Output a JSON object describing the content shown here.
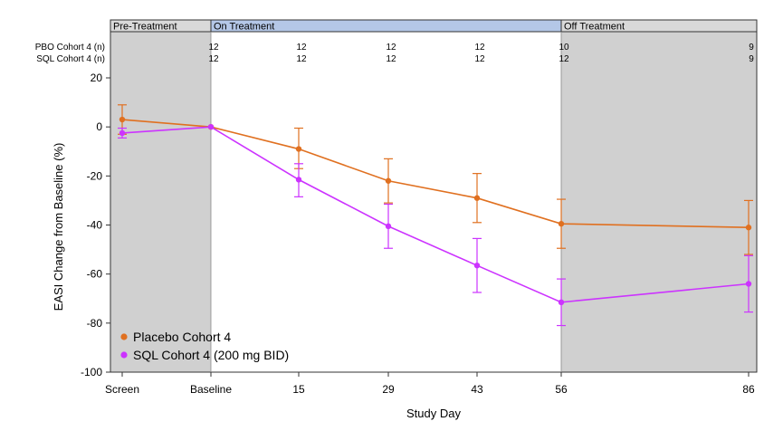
{
  "chart_data": {
    "type": "line",
    "xlabel": "Study Day",
    "ylabel": "EASI Change from Baseline (%)",
    "ylim": [
      -100,
      20
    ],
    "yticks": [
      20,
      0,
      -20,
      -40,
      -60,
      -80,
      -100
    ],
    "categories": [
      "Screen",
      "Baseline",
      "15",
      "29",
      "43",
      "56",
      "86"
    ],
    "phases": [
      {
        "label": "Pre-Treatment",
        "from": "Screen",
        "to": "Baseline",
        "shaded": true,
        "header_color": "#d9d9d9"
      },
      {
        "label": "On Treatment",
        "from": "Baseline",
        "to": "56",
        "shaded": false,
        "header_color": "#b4c7e7"
      },
      {
        "label": "Off Treatment",
        "from": "56",
        "to": "86",
        "shaded": true,
        "header_color": "#d9d9d9"
      }
    ],
    "n_table": [
      {
        "label": "PBO Cohort 4 (n)",
        "values": [
          "",
          "12",
          "12",
          "12",
          "12",
          "10",
          "9"
        ]
      },
      {
        "label": "SQL Cohort 4 (n)",
        "values": [
          "",
          "12",
          "12",
          "12",
          "12",
          "12",
          "9"
        ]
      }
    ],
    "series": [
      {
        "name": "Placebo Cohort 4",
        "color": "#e07020",
        "values": [
          3,
          0,
          -9,
          -22,
          -29,
          -39.5,
          -41
        ],
        "err_low": [
          -3,
          0,
          -17,
          -31,
          -39,
          -49.5,
          -52
        ],
        "err_high": [
          9,
          0,
          -0.5,
          -13,
          -19,
          -29.5,
          -30
        ]
      },
      {
        "name": "SQL Cohort 4 (200 mg BID)",
        "color": "#cc33ff",
        "values": [
          -2.5,
          0,
          -21.5,
          -40.5,
          -56.5,
          -71.5,
          -64
        ],
        "err_low": [
          -4.5,
          0,
          -28.5,
          -49.5,
          -67.5,
          -81,
          -75.5
        ],
        "err_high": [
          -0.5,
          0,
          -15,
          -31.5,
          -45.5,
          -62,
          -52.5
        ]
      }
    ],
    "legend_position": "bottom-left",
    "grid": false
  }
}
